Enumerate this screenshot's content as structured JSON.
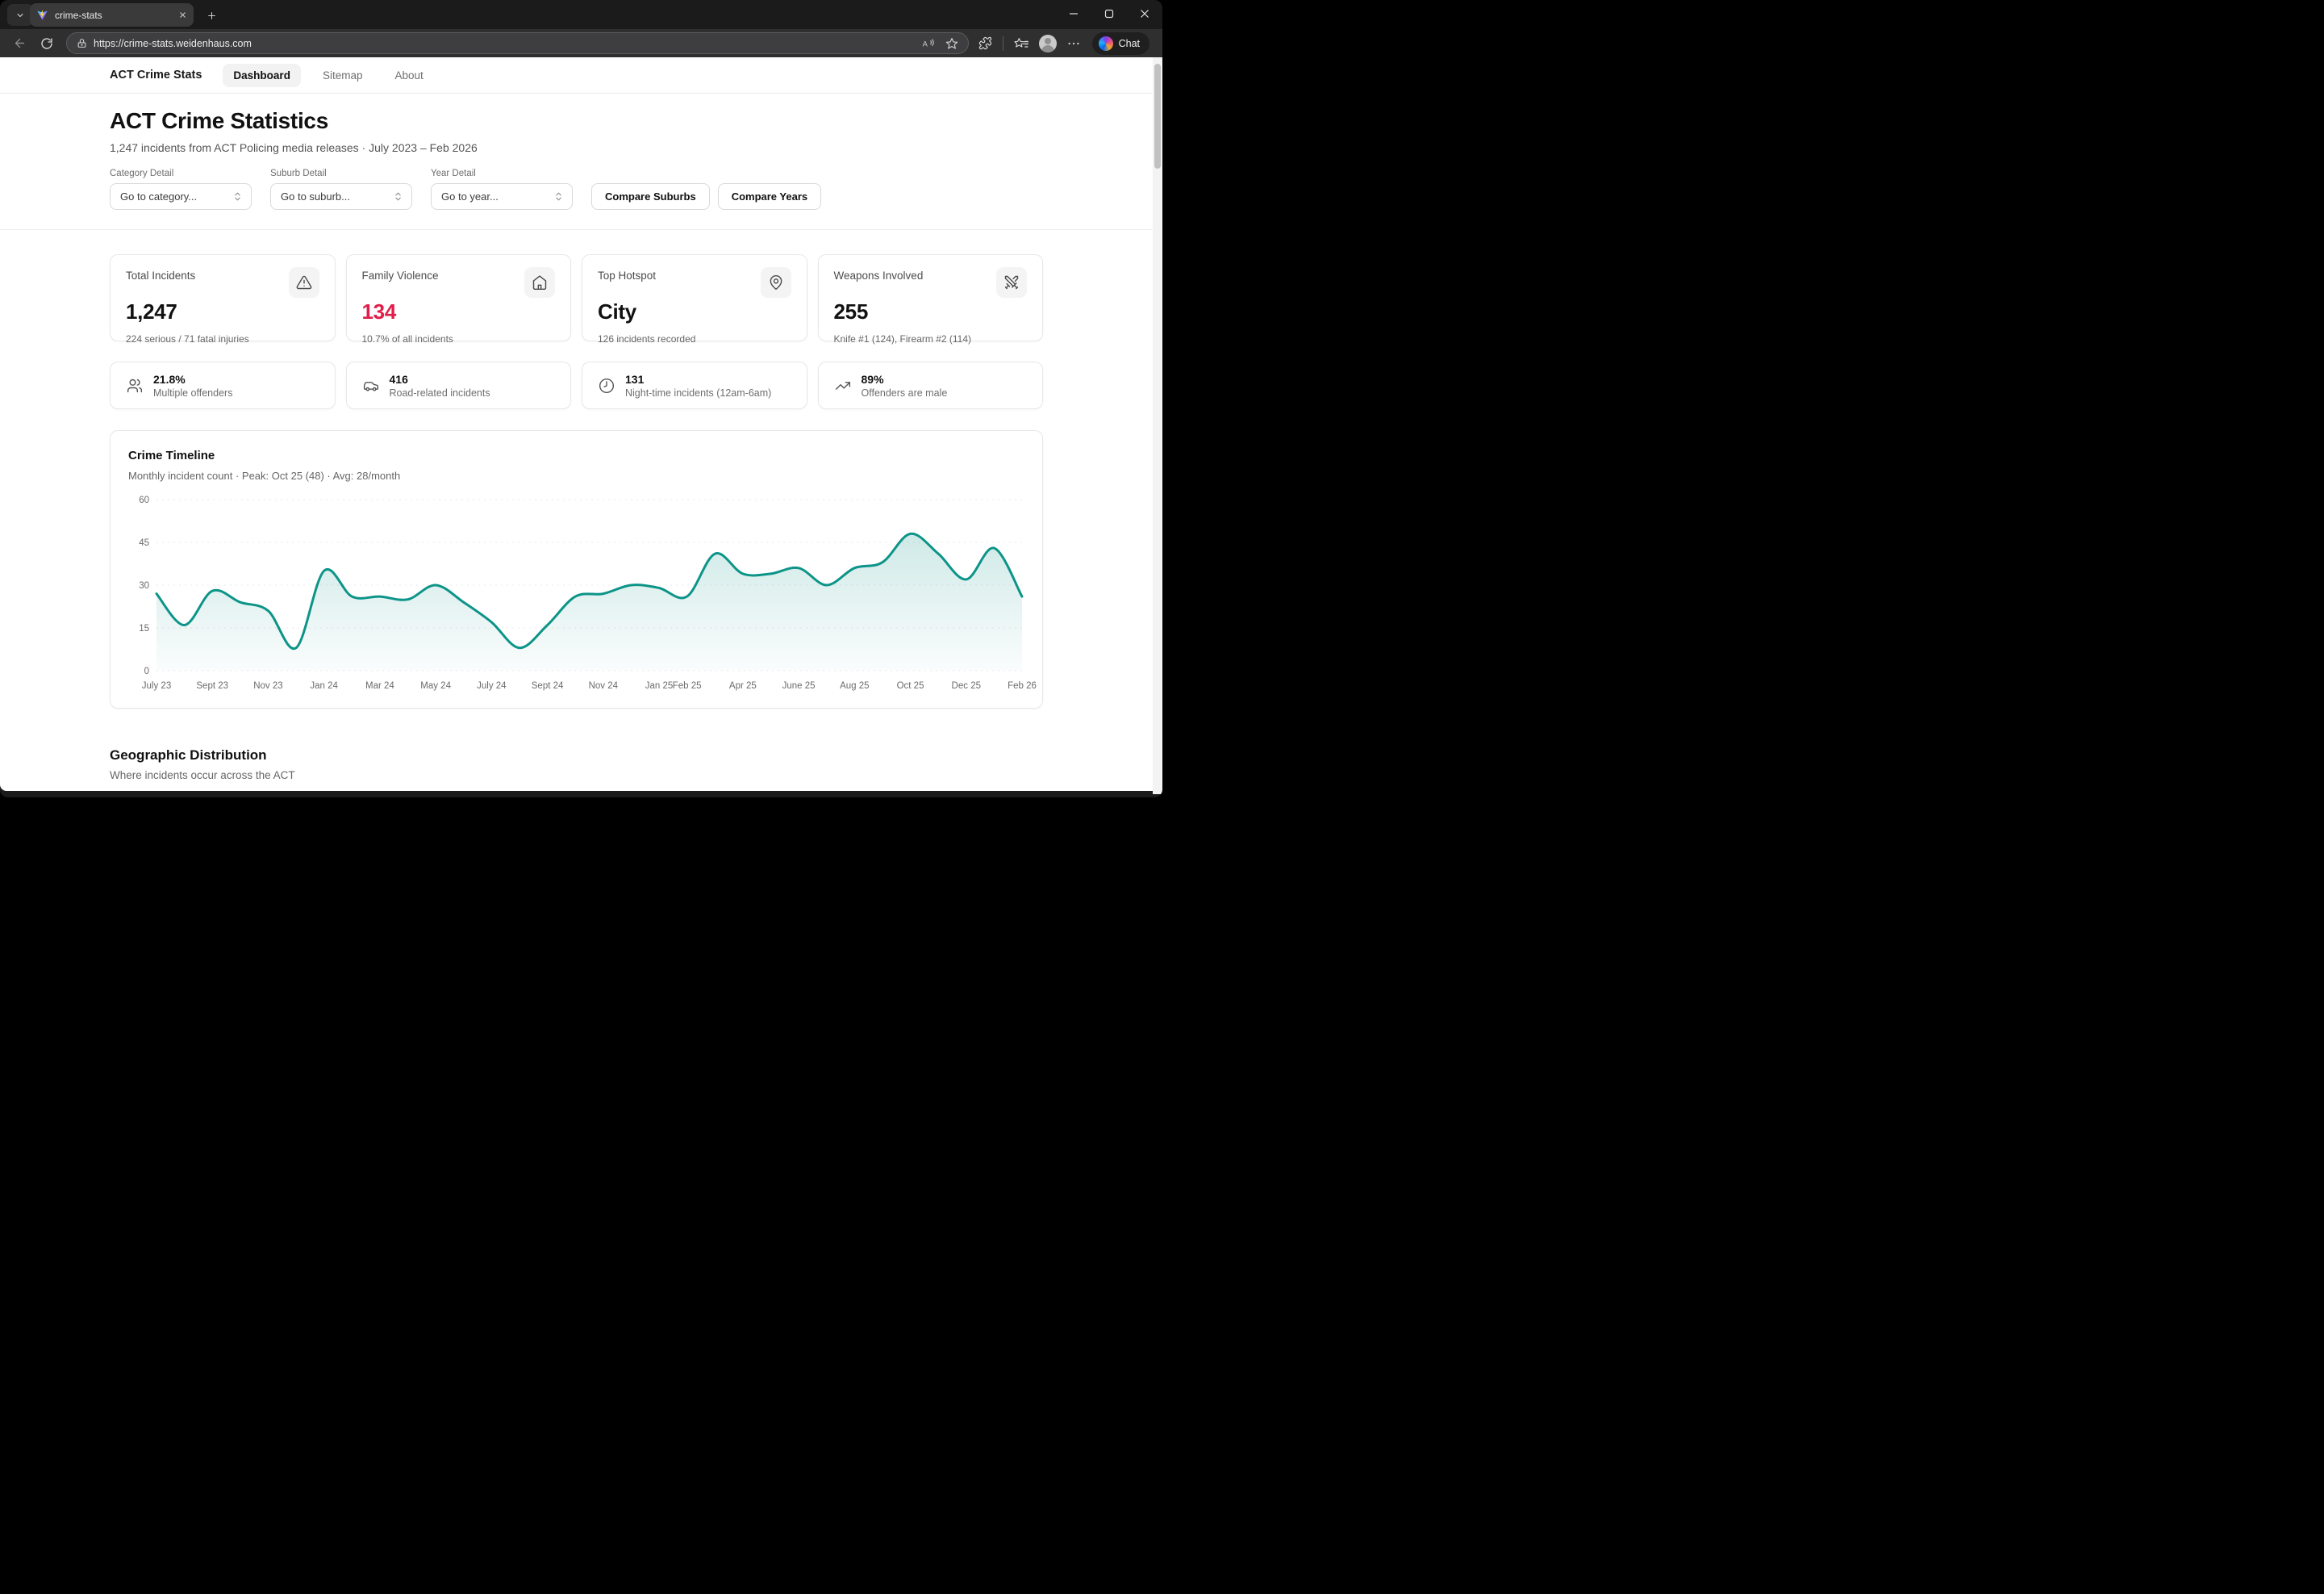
{
  "browser": {
    "tab_title": "crime-stats",
    "url": "https://crime-stats.weidenhaus.com",
    "chat_label": "Chat"
  },
  "nav": {
    "brand": "ACT Crime Stats",
    "items": [
      {
        "label": "Dashboard",
        "active": true
      },
      {
        "label": "Sitemap",
        "active": false
      },
      {
        "label": "About",
        "active": false
      }
    ]
  },
  "header": {
    "title": "ACT Crime Statistics",
    "subtitle": "1,247 incidents from ACT Policing media releases · July 2023 – Feb 2026"
  },
  "filters": {
    "category": {
      "label": "Category Detail",
      "value": "Go to category..."
    },
    "suburb": {
      "label": "Suburb Detail",
      "value": "Go to suburb..."
    },
    "year": {
      "label": "Year Detail",
      "value": "Go to year..."
    },
    "compare_suburbs": "Compare Suburbs",
    "compare_years": "Compare Years"
  },
  "stat_cards": [
    {
      "label": "Total Incidents",
      "value": "1,247",
      "sub": "224 serious / 71 fatal injuries",
      "icon": "alert-triangle",
      "value_color": "#111111"
    },
    {
      "label": "Family Violence",
      "value": "134",
      "sub": "10.7% of all incidents",
      "icon": "home",
      "value_color": "#e11d48"
    },
    {
      "label": "Top Hotspot",
      "value": "City",
      "sub": "126 incidents recorded",
      "icon": "map-pin",
      "value_color": "#111111"
    },
    {
      "label": "Weapons Involved",
      "value": "255",
      "sub": "Knife #1 (124), Firearm #2 (114)",
      "icon": "swords",
      "value_color": "#111111"
    }
  ],
  "mini_cards": [
    {
      "value": "21.8%",
      "label": "Multiple offenders",
      "icon": "users"
    },
    {
      "value": "416",
      "label": "Road-related incidents",
      "icon": "car"
    },
    {
      "value": "131",
      "label": "Night-time incidents (12am-6am)",
      "icon": "clock"
    },
    {
      "value": "89%",
      "label": "Offenders are male",
      "icon": "trending-up"
    }
  ],
  "timeline": {
    "title": "Crime Timeline",
    "subtitle": "Monthly incident count · Peak: Oct 25 (48) · Avg: 28/month"
  },
  "chart_data": {
    "type": "area",
    "title": "Crime Timeline",
    "xlabel": "",
    "ylabel": "",
    "ylim": [
      0,
      60
    ],
    "yticks": [
      0,
      15,
      30,
      45,
      60
    ],
    "grid": "dashed-horizontal",
    "line_color": "#0d9488",
    "categories": [
      "Jul 23",
      "Aug 23",
      "Sep 23",
      "Oct 23",
      "Nov 23",
      "Dec 23",
      "Jan 24",
      "Feb 24",
      "Mar 24",
      "Apr 24",
      "May 24",
      "Jun 24",
      "Jul 24",
      "Aug 24",
      "Sep 24",
      "Oct 24",
      "Nov 24",
      "Dec 24",
      "Jan 25",
      "Feb 25",
      "Mar 25",
      "Apr 25",
      "May 25",
      "Jun 25",
      "Jul 25",
      "Aug 25",
      "Sep 25",
      "Oct 25",
      "Nov 25",
      "Dec 25",
      "Jan 26",
      "Feb 26"
    ],
    "values": [
      27,
      16,
      28,
      24,
      21,
      8,
      35,
      26,
      26,
      25,
      30,
      24,
      17,
      8,
      16,
      26,
      27,
      30,
      29,
      26,
      41,
      34,
      34,
      36,
      30,
      36,
      38,
      48,
      41,
      32,
      43,
      26
    ],
    "x_tick_labels": [
      {
        "i": 0,
        "label": "July 23"
      },
      {
        "i": 2,
        "label": "Sept 23"
      },
      {
        "i": 4,
        "label": "Nov 23"
      },
      {
        "i": 6,
        "label": "Jan 24"
      },
      {
        "i": 8,
        "label": "Mar 24"
      },
      {
        "i": 10,
        "label": "May 24"
      },
      {
        "i": 12,
        "label": "July 24"
      },
      {
        "i": 14,
        "label": "Sept 24"
      },
      {
        "i": 16,
        "label": "Nov 24"
      },
      {
        "i": 18,
        "label": "Jan 25"
      },
      {
        "i": 19,
        "label": "Feb 25"
      },
      {
        "i": 21,
        "label": "Apr 25"
      },
      {
        "i": 23,
        "label": "June 25"
      },
      {
        "i": 25,
        "label": "Aug 25"
      },
      {
        "i": 27,
        "label": "Oct 25"
      },
      {
        "i": 29,
        "label": "Dec 25"
      },
      {
        "i": 31,
        "label": "Feb 26"
      }
    ]
  },
  "geo": {
    "title": "Geographic Distribution",
    "subtitle": "Where incidents occur across the ACT"
  },
  "colors": {
    "teal": "#0d9488",
    "red": "#e11d48"
  }
}
